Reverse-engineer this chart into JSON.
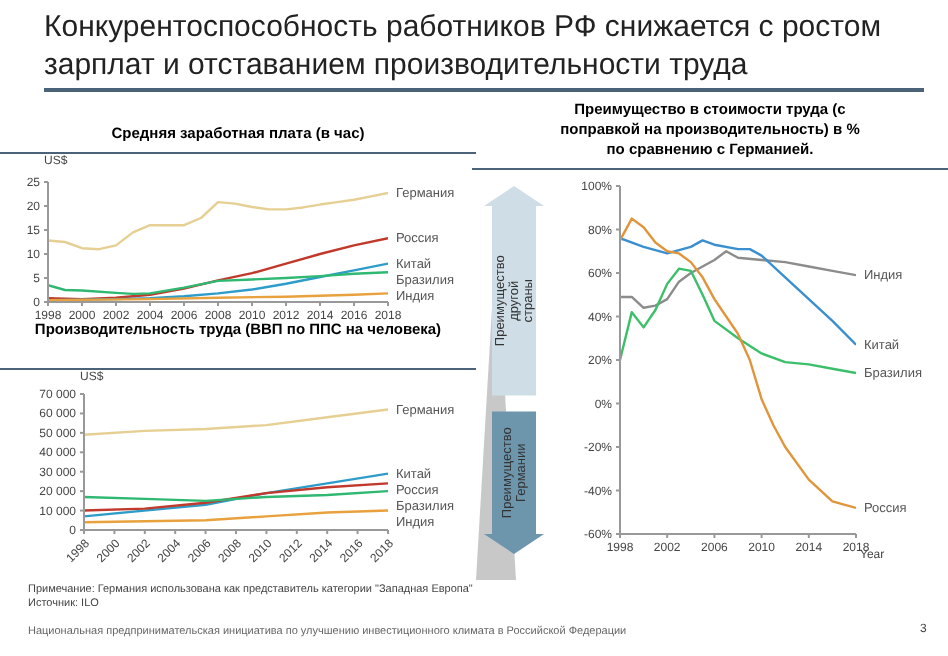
{
  "chart_data": [
    {
      "type": "line",
      "title": "Средняя заработная плата (в час)",
      "ylabel": "US$",
      "xlim": [
        1998,
        2018
      ],
      "xticks": [
        1998,
        2000,
        2002,
        2004,
        2006,
        2008,
        2010,
        2012,
        2014,
        2016,
        2018
      ],
      "ylim": [
        0,
        25
      ],
      "yticks": [
        0,
        5,
        10,
        15,
        20,
        25
      ],
      "series": [
        {
          "name": "Германия",
          "color": "#e6cf92",
          "x": [
            1998,
            1999,
            2000,
            2001,
            2002,
            2003,
            2004,
            2005,
            2006,
            2007,
            2008,
            2009,
            2010,
            2011,
            2012,
            2013,
            2014,
            2015,
            2016,
            2017,
            2018
          ],
          "values": [
            12.8,
            12.5,
            11.2,
            11,
            11.8,
            14.5,
            16,
            16,
            16,
            17.5,
            20.8,
            20.5,
            19.8,
            19.3,
            19.3,
            19.7,
            20.3,
            20.8,
            21.3,
            22,
            22.7
          ]
        },
        {
          "name": "Россия",
          "color": "#c0392b",
          "x": [
            1998,
            2000,
            2002,
            2004,
            2006,
            2008,
            2010,
            2012,
            2014,
            2016,
            2018
          ],
          "values": [
            0.8,
            0.6,
            0.9,
            1.5,
            2.8,
            4.5,
            6,
            8,
            10,
            11.8,
            13.3
          ]
        },
        {
          "name": "Китай",
          "color": "#2e9cc8",
          "x": [
            1998,
            2002,
            2004,
            2006,
            2008,
            2010,
            2012,
            2014,
            2016,
            2018
          ],
          "values": [
            0.4,
            0.6,
            0.8,
            1.2,
            1.8,
            2.6,
            3.8,
            5.2,
            6.6,
            8
          ]
        },
        {
          "name": "Бразилия",
          "color": "#2eb872",
          "x": [
            1998,
            1999,
            2000,
            2002,
            2003,
            2004,
            2006,
            2008,
            2010,
            2012,
            2014,
            2016,
            2018
          ],
          "values": [
            3.5,
            2.5,
            2.4,
            1.9,
            1.7,
            1.8,
            3,
            4.4,
            4.7,
            5,
            5.4,
            5.9,
            6.2
          ]
        },
        {
          "name": "Индия",
          "color": "#e8a13c",
          "x": [
            1998,
            2004,
            2008,
            2012,
            2016,
            2018
          ],
          "values": [
            0.4,
            0.6,
            0.9,
            1.1,
            1.5,
            1.8
          ]
        }
      ],
      "annotations": [
        "Конкурентоспособность работников РФ снижается с ростом зарплат и отставанием производительности труда",
        "Примечание: Германия использована как представитель категории \"Западная Европа\"",
        "Источник: ILO",
        "Национальная предпринимательская инициатива по улучшению инвестиционного климата в Российской Федерации",
        "3"
      ]
    },
    {
      "type": "line",
      "title": "Производительность труда (ВВП по ППС на человека)",
      "ylabel": "US$",
      "xlim": [
        1998,
        2018
      ],
      "xticks": [
        1998,
        2000,
        2002,
        2004,
        2006,
        2008,
        2010,
        2012,
        2014,
        2016,
        2018
      ],
      "ylim": [
        0,
        70000
      ],
      "yticks": [
        0,
        {
          "value": 10000,
          "label": "10 000"
        },
        {
          "value": 20000,
          "label": "20 000"
        },
        {
          "value": 30000,
          "label": "30 000"
        },
        {
          "value": 40000,
          "label": "40 000"
        },
        {
          "value": 50000,
          "label": "50 000"
        },
        {
          "value": 60000,
          "label": "60 000"
        },
        {
          "value": 70000,
          "label": "70 000"
        }
      ],
      "series": [
        {
          "name": "Германия",
          "color": "#e6cf92",
          "x": [
            1998,
            2002,
            2006,
            2010,
            2014,
            2018
          ],
          "values": [
            49000,
            51000,
            52000,
            54000,
            58000,
            62000
          ]
        },
        {
          "name": "Китай",
          "color": "#2e9cc8",
          "x": [
            1998,
            2006,
            2010,
            2014,
            2018
          ],
          "values": [
            7000,
            13000,
            19000,
            24000,
            29000
          ]
        },
        {
          "name": "Россия",
          "color": "#c0392b",
          "x": [
            1998,
            2002,
            2006,
            2010,
            2014,
            2018
          ],
          "values": [
            10000,
            11000,
            14000,
            19000,
            22000,
            24000
          ]
        },
        {
          "name": "Бразилия",
          "color": "#2eb872",
          "x": [
            1998,
            2002,
            2006,
            2010,
            2014,
            2018
          ],
          "values": [
            17000,
            16000,
            15000,
            17000,
            18000,
            20000
          ]
        },
        {
          "name": "Индия",
          "color": "#e8a13c",
          "x": [
            1998,
            2006,
            2010,
            2014,
            2018
          ],
          "values": [
            4000,
            5000,
            7000,
            9000,
            10000
          ]
        }
      ]
    },
    {
      "type": "line",
      "title": "Преимущество в стоимости труда (с поправкой на производительность) в % по сравнению с Германией.",
      "xlabel": "Year",
      "xlim": [
        1998,
        2018
      ],
      "xticks": [
        1998,
        2002,
        2006,
        2010,
        2014,
        2018
      ],
      "ylim": [
        -60,
        100
      ],
      "yticks": [
        {
          "value": -60,
          "label": "-60%"
        },
        {
          "value": -40,
          "label": "-40%"
        },
        {
          "value": -20,
          "label": "-20%"
        },
        {
          "value": 0,
          "label": "0%"
        },
        {
          "value": 20,
          "label": "20%"
        },
        {
          "value": 40,
          "label": "40%"
        },
        {
          "value": 60,
          "label": "60%"
        },
        {
          "value": 80,
          "label": "80%"
        },
        {
          "value": 100,
          "label": "100%"
        }
      ],
      "series": [
        {
          "name": "Индия",
          "color": "#8c8c8c",
          "x": [
            1998,
            1999,
            2000,
            2001,
            2002,
            2003,
            2004,
            2005,
            2006,
            2007,
            2008,
            2010,
            2012,
            2014,
            2016,
            2018
          ],
          "values": [
            49,
            49,
            44,
            45,
            48,
            56,
            60,
            63,
            66,
            70,
            67,
            66,
            65,
            63,
            61,
            59
          ]
        },
        {
          "name": "Китай",
          "color": "#3a8fd0",
          "x": [
            1998,
            2000,
            2002,
            2004,
            2005,
            2006,
            2008,
            2009,
            2010,
            2012,
            2014,
            2016,
            2018
          ],
          "values": [
            76,
            72,
            69,
            72,
            75,
            73,
            71,
            71,
            68,
            58,
            48,
            38,
            27
          ]
        },
        {
          "name": "Бразилия",
          "color": "#3cbf6a",
          "x": [
            1998,
            1999,
            2000,
            2001,
            2002,
            2003,
            2004,
            2005,
            2006,
            2008,
            2010,
            2012,
            2014,
            2016,
            2018
          ],
          "values": [
            20,
            42,
            35,
            43,
            55,
            62,
            61,
            50,
            38,
            30,
            23,
            19,
            18,
            16,
            14
          ]
        },
        {
          "name": "Россия",
          "color": "#e0953a",
          "x": [
            1998,
            1999,
            2000,
            2001,
            2002,
            2003,
            2004,
            2005,
            2006,
            2007,
            2008,
            2009,
            2010,
            2011,
            2012,
            2014,
            2016,
            2018
          ],
          "values": [
            75,
            85,
            81,
            74,
            70,
            69,
            65,
            58,
            48,
            40,
            32,
            20,
            2,
            -10,
            -20,
            -35,
            -45,
            -48
          ]
        }
      ],
      "annotations": [
        "Преимущество другой страны",
        "Преимущество Германии"
      ]
    }
  ]
}
